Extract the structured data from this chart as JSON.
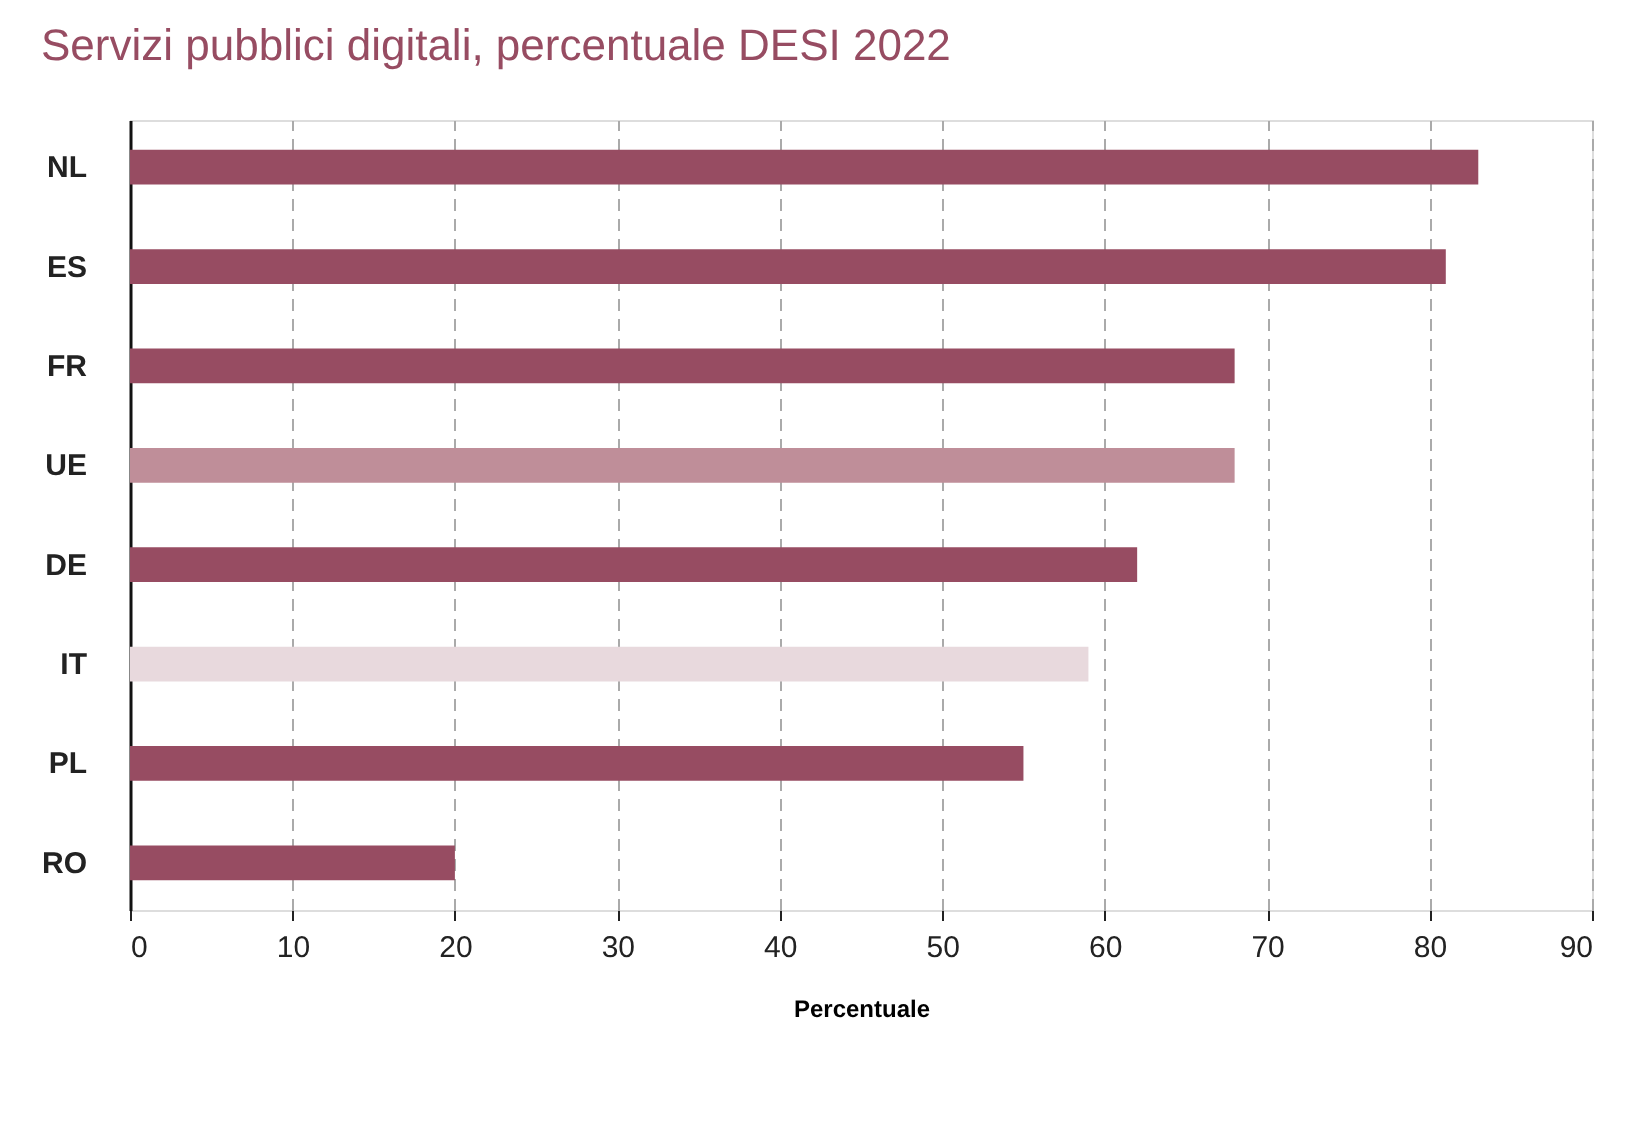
{
  "chart_data": {
    "type": "bar",
    "orientation": "horizontal",
    "title": "Servizi pubblici digitali, percentuale DESI 2022",
    "xlabel": "Percentuale",
    "categories": [
      "NL",
      "ES",
      "FR",
      "UE",
      "DE",
      "IT",
      "PL",
      "RO"
    ],
    "values": [
      83,
      81,
      68,
      68,
      62,
      59,
      55,
      20
    ],
    "colors": [
      "#974c62",
      "#974c62",
      "#974c62",
      "#bf8e99",
      "#974c62",
      "#e8d9dd",
      "#974c62",
      "#974c62"
    ],
    "xlim": [
      0,
      90
    ],
    "xticks": [
      0,
      10,
      20,
      30,
      40,
      50,
      60,
      70,
      80,
      90
    ],
    "grid": "x"
  }
}
